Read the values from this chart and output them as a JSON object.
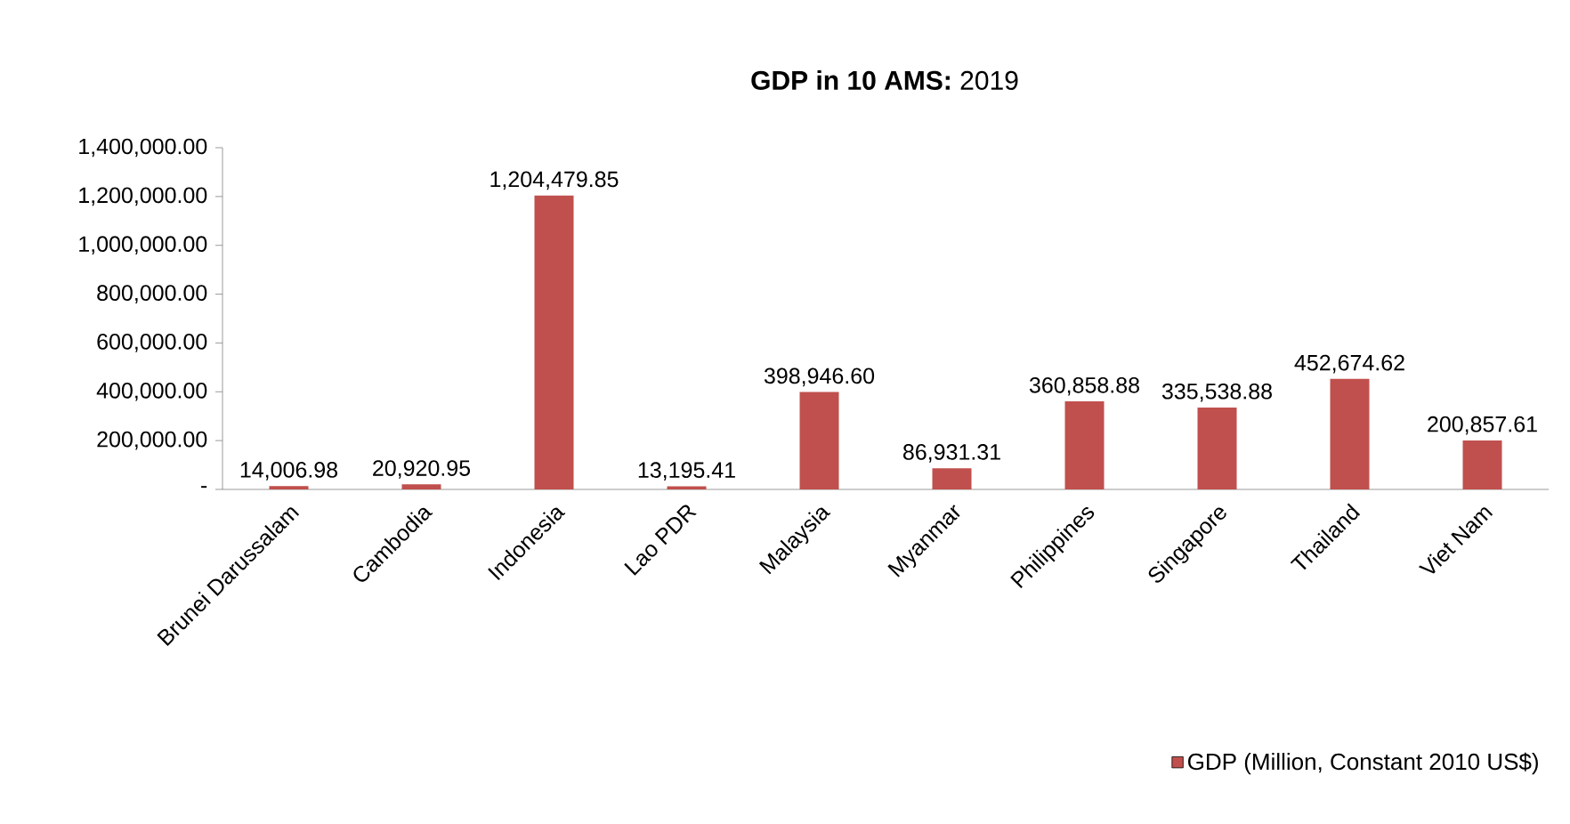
{
  "chart_data": {
    "type": "bar",
    "title": "**GDP  in 10 AMS:** 2019",
    "categories": [
      "Brunei Darussalam",
      "Cambodia",
      "Indonesia",
      "Lao PDR",
      "Malaysia",
      "Myanmar",
      "Philippines",
      "Singapore",
      "Thailand",
      "Viet Nam"
    ],
    "series": [
      {
        "name": "GDP (Million, Constant 2010 US$)",
        "color": "#c0504d",
        "values": [
          14006.98,
          20920.95,
          1204479.85,
          13195.41,
          398946.6,
          86931.31,
          360858.88,
          335538.88,
          452674.62,
          200857.61
        ],
        "value_labels": [
          "14,006.98",
          "20,920.95",
          "1,204,479.85",
          "13,195.41",
          "398,946.60",
          "86,931.31",
          "360,858.88",
          "335,538.88",
          "452,674.62",
          "200,857.61"
        ]
      }
    ],
    "ylim": [
      0,
      1400000
    ],
    "yticks": [
      {
        "value": 0,
        "label": "-"
      },
      {
        "value": 200000,
        "label": "200,000.00"
      },
      {
        "value": 400000,
        "label": "400,000.00"
      },
      {
        "value": 600000,
        "label": "600,000.00"
      },
      {
        "value": 800000,
        "label": "800,000.00"
      },
      {
        "value": 1000000,
        "label": "1,000,000.00"
      },
      {
        "value": 1200000,
        "label": "1,200,000.00"
      },
      {
        "value": 1400000,
        "label": "1,400,000.00"
      }
    ],
    "legend": "bottom right"
  }
}
